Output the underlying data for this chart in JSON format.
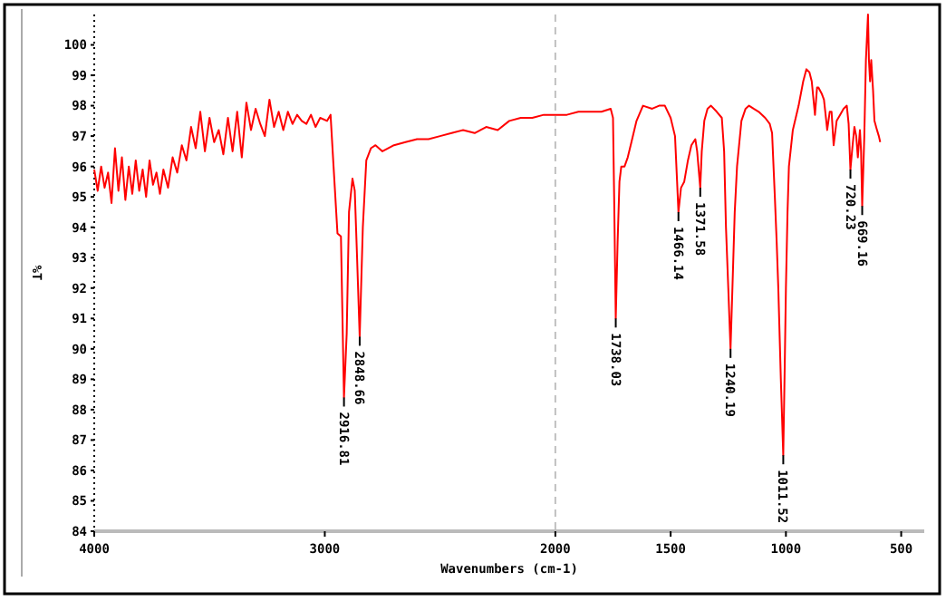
{
  "chart_data": {
    "type": "line",
    "xlabel": "Wavenumbers (cm-1)",
    "ylabel": "%T",
    "xlim": [
      4000,
      400
    ],
    "ylim": [
      84,
      101
    ],
    "xticks": [
      4000,
      3000,
      2000,
      1500,
      1000,
      500
    ],
    "yticks": [
      84,
      85,
      86,
      87,
      88,
      89,
      90,
      91,
      92,
      93,
      94,
      95,
      96,
      97,
      98,
      99,
      100
    ],
    "marker": "none",
    "line_style": "solid",
    "ref_lines": [
      {
        "axis": "x",
        "value": 2000,
        "label": null,
        "color": "#c0c0c0",
        "line_style": "dashed"
      }
    ],
    "series": [
      {
        "color": "#ff0000",
        "x": [
          4000,
          3985,
          3970,
          3955,
          3940,
          3925,
          3910,
          3895,
          3880,
          3865,
          3850,
          3835,
          3820,
          3805,
          3790,
          3775,
          3760,
          3745,
          3730,
          3715,
          3700,
          3680,
          3660,
          3640,
          3620,
          3600,
          3580,
          3560,
          3540,
          3520,
          3500,
          3480,
          3460,
          3440,
          3420,
          3400,
          3380,
          3360,
          3340,
          3320,
          3300,
          3280,
          3260,
          3240,
          3220,
          3200,
          3180,
          3160,
          3140,
          3120,
          3100,
          3080,
          3060,
          3040,
          3020,
          2990,
          2975,
          2962,
          2945,
          2930,
          2916.81,
          2905,
          2895,
          2880,
          2870,
          2860,
          2848.66,
          2835,
          2820,
          2800,
          2780,
          2750,
          2700,
          2650,
          2600,
          2550,
          2500,
          2450,
          2400,
          2350,
          2300,
          2250,
          2200,
          2150,
          2100,
          2050,
          2000,
          1950,
          1900,
          1850,
          1800,
          1760,
          1750,
          1745,
          1738.03,
          1730,
          1722,
          1714,
          1700,
          1686,
          1670,
          1648,
          1620,
          1580,
          1550,
          1525,
          1500,
          1481,
          1472,
          1466.14,
          1455,
          1441,
          1425,
          1410,
          1393,
          1385,
          1371.58,
          1365,
          1354,
          1340,
          1325,
          1300,
          1278,
          1268,
          1260,
          1250,
          1240.19,
          1232,
          1222,
          1212,
          1193,
          1175,
          1160,
          1140,
          1118,
          1090,
          1070,
          1060,
          1048,
          1040,
          1033,
          1022,
          1011.52,
          1005,
          1000,
          993,
          987,
          970,
          945,
          925,
          911,
          898,
          888,
          874,
          865,
          859,
          845,
          835,
          825,
          821,
          810,
          802,
          793,
          780,
          765,
          750,
          736,
          728,
          720.23,
          712,
          703,
          695,
          688,
          679,
          674,
          669.16,
          660,
          653,
          644,
          640,
          635,
          630,
          622,
          616,
          605,
          597,
          591
        ],
        "values": [
          95.9,
          95.2,
          96.0,
          95.3,
          95.8,
          94.8,
          96.6,
          95.2,
          96.3,
          94.9,
          96.0,
          95.1,
          96.2,
          95.2,
          95.9,
          95.0,
          96.2,
          95.4,
          95.8,
          95.1,
          95.9,
          95.3,
          96.3,
          95.8,
          96.7,
          96.2,
          97.3,
          96.6,
          97.8,
          96.5,
          97.6,
          96.8,
          97.2,
          96.4,
          97.6,
          96.5,
          97.8,
          96.3,
          98.1,
          97.2,
          97.9,
          97.4,
          97.0,
          98.2,
          97.3,
          97.8,
          97.2,
          97.8,
          97.4,
          97.7,
          97.5,
          97.4,
          97.7,
          97.3,
          97.6,
          97.5,
          97.7,
          96.0,
          93.8,
          93.7,
          88.4,
          90.5,
          94.5,
          95.6,
          95.2,
          93.0,
          90.4,
          94.0,
          96.2,
          96.6,
          96.7,
          96.5,
          96.7,
          96.8,
          96.9,
          96.9,
          97.0,
          97.1,
          97.2,
          97.1,
          97.3,
          97.2,
          97.5,
          97.6,
          97.6,
          97.7,
          97.7,
          97.7,
          97.8,
          97.8,
          97.8,
          97.9,
          97.6,
          95.0,
          91.0,
          93.5,
          95.5,
          96.0,
          96.0,
          96.3,
          96.8,
          97.5,
          98.0,
          97.9,
          98.0,
          98.0,
          97.6,
          97.0,
          95.5,
          94.5,
          95.3,
          95.5,
          96.2,
          96.7,
          96.9,
          96.5,
          95.3,
          96.5,
          97.5,
          97.9,
          98.0,
          97.8,
          97.6,
          96.5,
          94.0,
          92.0,
          90.0,
          92.0,
          94.5,
          96.0,
          97.5,
          97.9,
          98.0,
          97.9,
          97.8,
          97.6,
          97.4,
          97.1,
          95.0,
          93.5,
          92.0,
          89.0,
          86.5,
          89.5,
          92.0,
          94.5,
          96.0,
          97.2,
          98.0,
          98.8,
          99.2,
          99.1,
          98.8,
          97.7,
          98.6,
          98.6,
          98.4,
          98.2,
          97.5,
          97.2,
          97.8,
          97.8,
          96.7,
          97.5,
          97.7,
          97.9,
          98.0,
          97.4,
          95.9,
          96.6,
          97.3,
          97.0,
          96.3,
          97.2,
          96.5,
          94.7,
          97.0,
          99.5,
          101.0,
          99.5,
          98.8,
          99.5,
          98.5,
          97.5,
          97.2,
          97.0,
          96.8
        ]
      }
    ],
    "annotations": [
      {
        "text": "2916.81",
        "x": 2916.81,
        "y": 88.4
      },
      {
        "text": "2848.66",
        "x": 2848.66,
        "y": 90.4
      },
      {
        "text": "1738.03",
        "x": 1738.03,
        "y": 91.0
      },
      {
        "text": "1466.14",
        "x": 1466.14,
        "y": 94.5
      },
      {
        "text": "1371.58",
        "x": 1371.58,
        "y": 95.3
      },
      {
        "text": "1240.19",
        "x": 1240.19,
        "y": 90.0
      },
      {
        "text": "1011.52",
        "x": 1011.52,
        "y": 86.5
      },
      {
        "text": "720.23",
        "x": 720.23,
        "y": 95.9
      },
      {
        "text": "669.16",
        "x": 669.16,
        "y": 94.7
      }
    ]
  }
}
